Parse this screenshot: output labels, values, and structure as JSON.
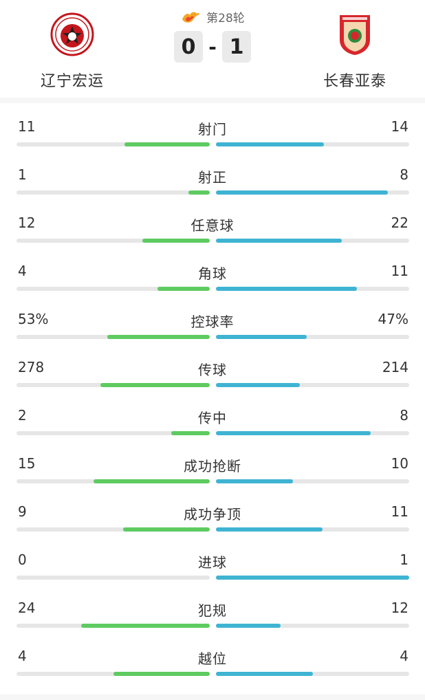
{
  "match": {
    "round": "第28轮",
    "home_team": "辽宁宏运",
    "away_team": "长春亚泰",
    "home_score": "0",
    "score_separator": "-",
    "away_score": "1"
  },
  "colors": {
    "home_bar": "#5ecb61",
    "away_bar": "#3fb4d2",
    "track": "#e6e6e6"
  },
  "stats": [
    {
      "label": "射门",
      "home": "11",
      "away": "14",
      "home_ratio": 0.44,
      "away_ratio": 0.56
    },
    {
      "label": "射正",
      "home": "1",
      "away": "8",
      "home_ratio": 0.11,
      "away_ratio": 0.89
    },
    {
      "label": "任意球",
      "home": "12",
      "away": "22",
      "home_ratio": 0.35,
      "away_ratio": 0.65
    },
    {
      "label": "角球",
      "home": "4",
      "away": "11",
      "home_ratio": 0.27,
      "away_ratio": 0.73
    },
    {
      "label": "控球率",
      "home": "53%",
      "away": "47%",
      "home_ratio": 0.53,
      "away_ratio": 0.47
    },
    {
      "label": "传球",
      "home": "278",
      "away": "214",
      "home_ratio": 0.565,
      "away_ratio": 0.435
    },
    {
      "label": "传中",
      "home": "2",
      "away": "8",
      "home_ratio": 0.2,
      "away_ratio": 0.8
    },
    {
      "label": "成功抢断",
      "home": "15",
      "away": "10",
      "home_ratio": 0.6,
      "away_ratio": 0.4
    },
    {
      "label": "成功争顶",
      "home": "9",
      "away": "11",
      "home_ratio": 0.45,
      "away_ratio": 0.55
    },
    {
      "label": "进球",
      "home": "0",
      "away": "1",
      "home_ratio": 0.0,
      "away_ratio": 1.0
    },
    {
      "label": "犯规",
      "home": "24",
      "away": "12",
      "home_ratio": 0.667,
      "away_ratio": 0.333
    },
    {
      "label": "越位",
      "home": "4",
      "away": "4",
      "home_ratio": 0.5,
      "away_ratio": 0.5
    }
  ]
}
